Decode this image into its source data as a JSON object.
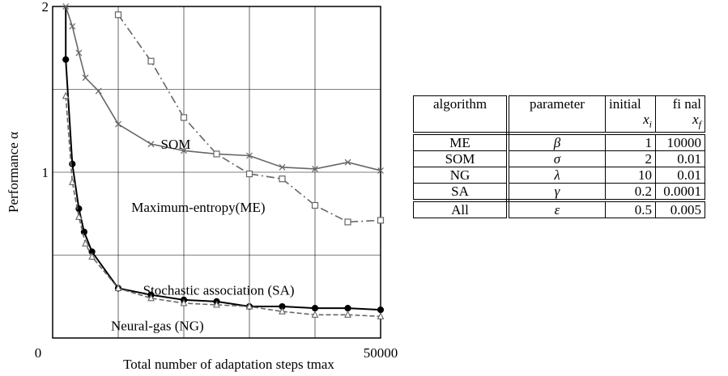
{
  "chart_data": {
    "type": "line",
    "xlabel": "Total number of adaptation steps  tmax",
    "ylabel": "Performance  α",
    "xlim": [
      0,
      50000
    ],
    "ylim": [
      0,
      2
    ],
    "x_tick_labels": [
      "0",
      "50000"
    ],
    "y_tick_labels": [
      "1",
      "2"
    ],
    "grid": true,
    "annotations": [
      "SOM",
      "Maximum-entropy(ME)",
      "Stochastic association (SA)",
      "Neural-gas (NG)"
    ],
    "series": [
      {
        "name": "SOM",
        "marker": "x",
        "line": "solid",
        "color": "#666666",
        "x": [
          2000,
          3000,
          4000,
          5000,
          7000,
          10000,
          15000,
          20000,
          25000,
          30000,
          35000,
          40000,
          45000,
          50000
        ],
        "y": [
          2.0,
          1.88,
          1.72,
          1.57,
          1.49,
          1.29,
          1.17,
          1.13,
          1.11,
          1.1,
          1.03,
          1.02,
          1.06,
          1.01
        ]
      },
      {
        "name": "Maximum-entropy(ME)",
        "marker": "square",
        "line": "dashdot",
        "color": "#666666",
        "x": [
          10000,
          15000,
          20000,
          25000,
          30000,
          35000,
          40000,
          45000,
          50000
        ],
        "y": [
          1.95,
          1.67,
          1.33,
          1.11,
          0.99,
          0.96,
          0.8,
          0.7,
          0.71
        ]
      },
      {
        "name": "Stochastic association (SA)",
        "marker": "filled-circle",
        "line": "solid",
        "color": "#000000",
        "x": [
          2000,
          3000,
          4000,
          4800,
          6000,
          10000,
          15000,
          20000,
          25000,
          30000,
          35000,
          40000,
          45000,
          50000
        ],
        "y": [
          1.68,
          1.05,
          0.78,
          0.64,
          0.52,
          0.3,
          0.26,
          0.23,
          0.22,
          0.19,
          0.19,
          0.18,
          0.18,
          0.17
        ]
      },
      {
        "name": "Neural-gas (NG)",
        "marker": "triangle",
        "line": "dashed",
        "color": "#666666",
        "x": [
          2000,
          3000,
          4000,
          5000,
          6000,
          10000,
          15000,
          20000,
          25000,
          30000,
          35000,
          40000,
          45000,
          50000
        ],
        "y": [
          1.46,
          0.94,
          0.73,
          0.57,
          0.49,
          0.3,
          0.24,
          0.21,
          0.2,
          0.19,
          0.16,
          0.14,
          0.14,
          0.13
        ]
      }
    ]
  },
  "table": {
    "headers": [
      "algorithm",
      "parameter",
      "initial",
      "fi nal"
    ],
    "header_sub": [
      "x_i",
      "x_f"
    ],
    "rows": [
      {
        "algorithm": "ME",
        "parameter": "β",
        "initial": "1",
        "final": "10000"
      },
      {
        "algorithm": "SOM",
        "parameter": "σ",
        "initial": "2",
        "final": "0.01"
      },
      {
        "algorithm": "NG",
        "parameter": "λ",
        "initial": "10",
        "final": "0.01"
      },
      {
        "algorithm": "SA",
        "parameter": "γ",
        "initial": "0.2",
        "final": "0.0001"
      },
      {
        "algorithm": "All",
        "parameter": "ε",
        "initial": "0.5",
        "final": "0.005"
      }
    ]
  }
}
